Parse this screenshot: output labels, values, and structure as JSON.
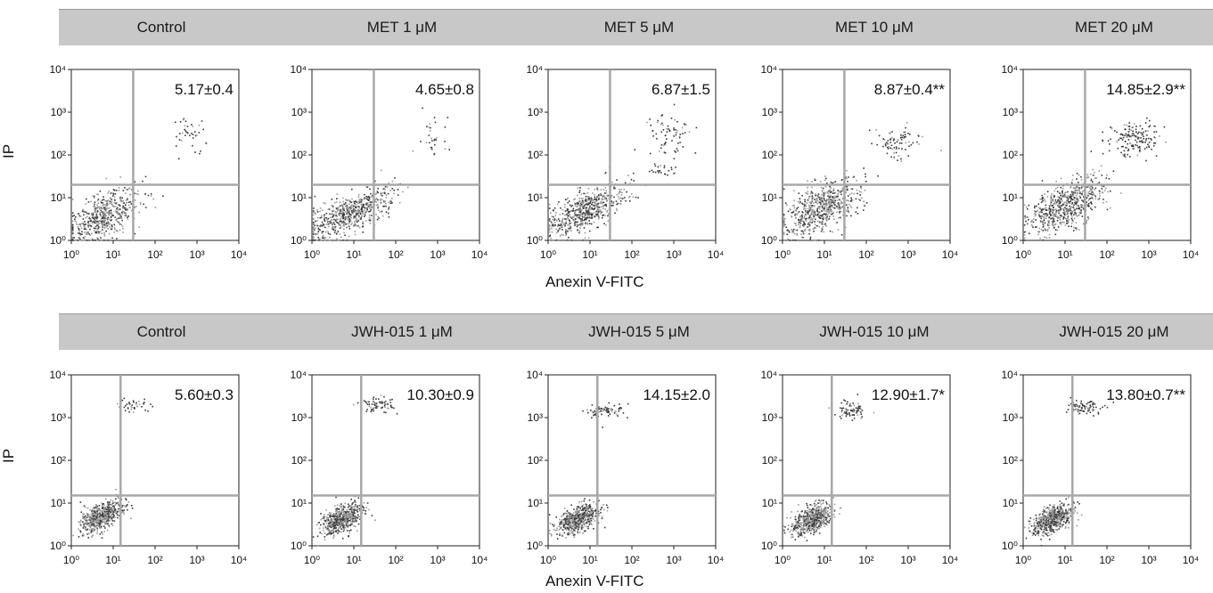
{
  "rows": [
    {
      "headers": [
        "Control",
        "MET  1 μM",
        "MET 5 μM",
        "MET 10 μM",
        "MET 20 μM"
      ],
      "y_axis_label": "IP",
      "x_axis_label": "Anexin V-FITC"
    },
    {
      "headers": [
        "Control",
        "JWH-015 1 μM",
        "JWH-015 5 μM",
        "JWH-015 10 μM",
        "JWH-015 20 μM"
      ],
      "y_axis_label": "IP",
      "x_axis_label": "Anexin V-FITC"
    }
  ],
  "colors": {
    "header_bar": "#c8c8c8",
    "gate_line": "#a8a8a8",
    "dot_dark": "#3a3a3a",
    "dot_light": "#9a9a9a"
  },
  "chart_data": [
    {
      "type": "scatter",
      "title": "Control",
      "annotation": "5.17±0.4",
      "xscale": "log",
      "yscale": "log",
      "xlim": [
        1,
        10000
      ],
      "ylim": [
        1,
        10000
      ],
      "gate": {
        "x": 30,
        "y": 20
      },
      "x_ticks": [
        "10⁰",
        "10¹",
        "10²",
        "10³",
        "10⁴"
      ],
      "y_ticks": [
        "10⁰",
        "10¹",
        "10²",
        "10³",
        "10⁴"
      ],
      "populations": [
        {
          "center": [
            5,
            3
          ],
          "spread": [
            0.45,
            0.45
          ],
          "count": 550
        },
        {
          "center": [
            600,
            400
          ],
          "spread": [
            0.2,
            0.2
          ],
          "count": 40
        }
      ]
    },
    {
      "type": "scatter",
      "title": "MET  1 μM",
      "annotation": "4.65±0.8",
      "xscale": "log",
      "yscale": "log",
      "xlim": [
        1,
        10000
      ],
      "ylim": [
        1,
        10000
      ],
      "gate": {
        "x": 30,
        "y": 20
      },
      "x_ticks": [
        "10⁰",
        "10¹",
        "10²",
        "10³",
        "10⁴"
      ],
      "y_ticks": [
        "10⁰",
        "10¹",
        "10²",
        "10³",
        "10⁴"
      ],
      "populations": [
        {
          "center": [
            8,
            3
          ],
          "spread": [
            0.55,
            0.35
          ],
          "count": 600
        },
        {
          "center": [
            700,
            250
          ],
          "spread": [
            0.15,
            0.25
          ],
          "count": 30
        }
      ]
    },
    {
      "type": "scatter",
      "title": "MET 5 μM",
      "annotation": "6.87±1.5",
      "xscale": "log",
      "yscale": "log",
      "xlim": [
        1,
        10000
      ],
      "ylim": [
        1,
        10000
      ],
      "gate": {
        "x": 30,
        "y": 20
      },
      "x_ticks": [
        "10⁰",
        "10¹",
        "10²",
        "10³",
        "10⁴"
      ],
      "y_ticks": [
        "10⁰",
        "10¹",
        "10²",
        "10³",
        "10⁴"
      ],
      "populations": [
        {
          "center": [
            8,
            4
          ],
          "spread": [
            0.45,
            0.4
          ],
          "count": 600
        },
        {
          "center": [
            800,
            300
          ],
          "spread": [
            0.25,
            0.2
          ],
          "count": 70
        },
        {
          "center": [
            500,
            50
          ],
          "spread": [
            0.2,
            0.15
          ],
          "count": 25
        }
      ]
    },
    {
      "type": "scatter",
      "title": "MET 10 μM",
      "annotation": "8.87±0.4**",
      "xscale": "log",
      "yscale": "log",
      "xlim": [
        1,
        10000
      ],
      "ylim": [
        1,
        10000
      ],
      "gate": {
        "x": 30,
        "y": 20
      },
      "x_ticks": [
        "10⁰",
        "10¹",
        "10²",
        "10³",
        "10⁴"
      ],
      "y_ticks": [
        "10⁰",
        "10¹",
        "10²",
        "10³",
        "10⁴"
      ],
      "populations": [
        {
          "center": [
            8,
            5
          ],
          "spread": [
            0.45,
            0.45
          ],
          "count": 650
        },
        {
          "center": [
            500,
            200
          ],
          "spread": [
            0.25,
            0.2
          ],
          "count": 80
        }
      ]
    },
    {
      "type": "scatter",
      "title": "MET 20 μM",
      "annotation": "14.85±2.9**",
      "xscale": "log",
      "yscale": "log",
      "xlim": [
        1,
        10000
      ],
      "ylim": [
        1,
        10000
      ],
      "gate": {
        "x": 30,
        "y": 20
      },
      "x_ticks": [
        "10⁰",
        "10¹",
        "10²",
        "10³",
        "10⁴"
      ],
      "y_ticks": [
        "10⁰",
        "10¹",
        "10²",
        "10³",
        "10⁴"
      ],
      "populations": [
        {
          "center": [
            10,
            5
          ],
          "spread": [
            0.45,
            0.45
          ],
          "count": 650
        },
        {
          "center": [
            400,
            250
          ],
          "spread": [
            0.3,
            0.2
          ],
          "count": 160
        }
      ]
    },
    {
      "type": "scatter",
      "title": "Control",
      "annotation": "5.60±0.3",
      "xscale": "log",
      "yscale": "log",
      "xlim": [
        1,
        10000
      ],
      "ylim": [
        1,
        10000
      ],
      "gate": {
        "x": 15,
        "y": 15
      },
      "x_ticks": [
        "10⁰",
        "10¹",
        "10²",
        "10³",
        "10⁴"
      ],
      "y_ticks": [
        "10⁰",
        "10¹",
        "10²",
        "10³",
        "10⁴"
      ],
      "populations": [
        {
          "center": [
            5,
            5
          ],
          "spread": [
            0.25,
            0.25
          ],
          "count": 550
        },
        {
          "center": [
            30,
            2000
          ],
          "spread": [
            0.2,
            0.08
          ],
          "count": 40
        }
      ]
    },
    {
      "type": "scatter",
      "title": "JWH-015 1 μM",
      "annotation": "10.30±0.9",
      "xscale": "log",
      "yscale": "log",
      "xlim": [
        1,
        10000
      ],
      "ylim": [
        1,
        10000
      ],
      "gate": {
        "x": 15,
        "y": 15
      },
      "x_ticks": [
        "10⁰",
        "10¹",
        "10²",
        "10³",
        "10⁴"
      ],
      "y_ticks": [
        "10⁰",
        "10¹",
        "10²",
        "10³",
        "10⁴"
      ],
      "populations": [
        {
          "center": [
            5,
            4
          ],
          "spread": [
            0.25,
            0.25
          ],
          "count": 550
        },
        {
          "center": [
            35,
            2000
          ],
          "spread": [
            0.2,
            0.1
          ],
          "count": 70
        }
      ]
    },
    {
      "type": "scatter",
      "title": "JWH-015 5 μM",
      "annotation": "14.15±2.0",
      "xscale": "log",
      "yscale": "log",
      "xlim": [
        1,
        10000
      ],
      "ylim": [
        1,
        10000
      ],
      "gate": {
        "x": 15,
        "y": 15
      },
      "x_ticks": [
        "10⁰",
        "10¹",
        "10²",
        "10³",
        "10⁴"
      ],
      "y_ticks": [
        "10⁰",
        "10¹",
        "10²",
        "10³",
        "10⁴"
      ],
      "populations": [
        {
          "center": [
            5,
            4
          ],
          "spread": [
            0.25,
            0.25
          ],
          "count": 550
        },
        {
          "center": [
            25,
            1500
          ],
          "spread": [
            0.2,
            0.08
          ],
          "count": 80
        }
      ]
    },
    {
      "type": "scatter",
      "title": "JWH-015 10 μM",
      "annotation": "12.90±1.7*",
      "xscale": "log",
      "yscale": "log",
      "xlim": [
        1,
        10000
      ],
      "ylim": [
        1,
        10000
      ],
      "gate": {
        "x": 15,
        "y": 15
      },
      "x_ticks": [
        "10⁰",
        "10¹",
        "10²",
        "10³",
        "10⁴"
      ],
      "y_ticks": [
        "10⁰",
        "10¹",
        "10²",
        "10³",
        "10⁴"
      ],
      "populations": [
        {
          "center": [
            5,
            4
          ],
          "spread": [
            0.25,
            0.25
          ],
          "count": 550
        },
        {
          "center": [
            40,
            1500
          ],
          "spread": [
            0.2,
            0.1
          ],
          "count": 80
        }
      ]
    },
    {
      "type": "scatter",
      "title": "JWH-015 20 μM",
      "annotation": "13.80±0.7**",
      "xscale": "log",
      "yscale": "log",
      "xlim": [
        1,
        10000
      ],
      "ylim": [
        1,
        10000
      ],
      "gate": {
        "x": 15,
        "y": 15
      },
      "x_ticks": [
        "10⁰",
        "10¹",
        "10²",
        "10³",
        "10⁴"
      ],
      "y_ticks": [
        "10⁰",
        "10¹",
        "10²",
        "10³",
        "10⁴"
      ],
      "populations": [
        {
          "center": [
            5,
            4
          ],
          "spread": [
            0.25,
            0.25
          ],
          "count": 550
        },
        {
          "center": [
            30,
            1800
          ],
          "spread": [
            0.2,
            0.1
          ],
          "count": 80
        }
      ]
    }
  ]
}
